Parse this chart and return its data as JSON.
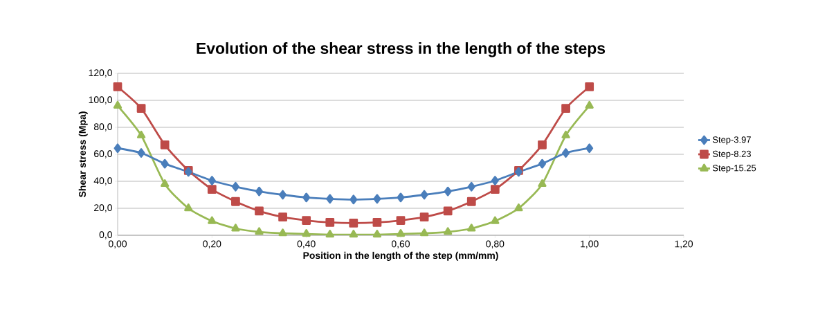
{
  "chart_data": {
    "type": "line",
    "title": "Evolution of the shear stress in the length of the steps",
    "xlabel": "Position in the length of the step (mm/mm)",
    "ylabel": "Shear stress (Mpa)",
    "x": [
      0,
      0.05,
      0.1,
      0.15,
      0.2,
      0.25,
      0.3,
      0.35,
      0.4,
      0.45,
      0.5,
      0.55,
      0.6,
      0.65,
      0.7,
      0.75,
      0.8,
      0.85,
      0.9,
      0.95,
      1.0
    ],
    "series": [
      {
        "name": "Step-3.97",
        "color": "#4a7ebb",
        "marker": "diamond",
        "values": [
          64.5,
          61,
          53,
          47,
          40.5,
          36,
          32.5,
          30,
          28,
          27,
          26.5,
          27,
          28,
          30,
          32.5,
          36,
          40.5,
          47,
          53,
          61,
          64.5
        ]
      },
      {
        "name": "Step-8.23",
        "color": "#be4b48",
        "marker": "square",
        "values": [
          110,
          94,
          67,
          48,
          34,
          25,
          18,
          13.5,
          11,
          9.5,
          9,
          9.5,
          11,
          13.5,
          18,
          25,
          34,
          48,
          67,
          94,
          110
        ]
      },
      {
        "name": "Step-15.25",
        "color": "#98b954",
        "marker": "triangle",
        "values": [
          96,
          74,
          38,
          20,
          10.5,
          5,
          2.5,
          1.5,
          1,
          0.5,
          0.5,
          0.5,
          1,
          1.5,
          2.5,
          5,
          10.5,
          20,
          38,
          74,
          96
        ]
      }
    ],
    "xlim": [
      0,
      1.2
    ],
    "xticks": [
      {
        "value": 0,
        "label": "0,00"
      },
      {
        "value": 0.2,
        "label": "0,20"
      },
      {
        "value": 0.4,
        "label": "0,40"
      },
      {
        "value": 0.6,
        "label": "0,60"
      },
      {
        "value": 0.8,
        "label": "0,80"
      },
      {
        "value": 1.0,
        "label": "1,00"
      },
      {
        "value": 1.2,
        "label": "1,20"
      }
    ],
    "ylim": [
      0,
      120
    ],
    "yticks": [
      {
        "value": 0,
        "label": "0,0"
      },
      {
        "value": 20,
        "label": "20,0"
      },
      {
        "value": 40,
        "label": "40,0"
      },
      {
        "value": 60,
        "label": "60,0"
      },
      {
        "value": 80,
        "label": "80,0"
      },
      {
        "value": 100,
        "label": "100,0"
      },
      {
        "value": 120,
        "label": "120,0"
      }
    ],
    "grid": "y",
    "legend": "right",
    "line_style": "solid"
  }
}
